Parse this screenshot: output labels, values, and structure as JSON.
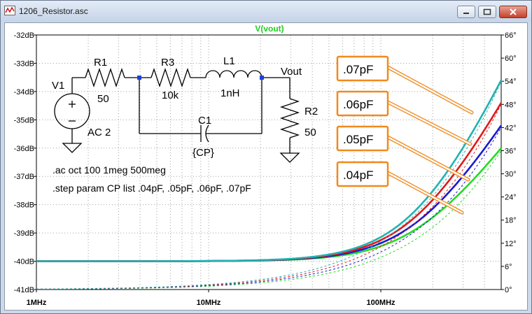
{
  "window": {
    "title": "1206_Resistor.asc"
  },
  "chart_data": {
    "type": "line",
    "title": "V(vout)",
    "x_scale": "log",
    "xlim": [
      1,
      500
    ],
    "x_ticks": [
      "1MHz",
      "10MHz",
      "100MHz"
    ],
    "ylim_db": [
      -41,
      -32
    ],
    "y_ticks_left": [
      "-32dB",
      "-33dB",
      "-34dB",
      "-35dB",
      "-36dB",
      "-37dB",
      "-38dB",
      "-39dB",
      "-40dB",
      "-41dB"
    ],
    "ylim_deg": [
      0,
      66
    ],
    "y_ticks_right": [
      "66°",
      "60°",
      "54°",
      "48°",
      "42°",
      "36°",
      "30°",
      "24°",
      "18°",
      "12°",
      "6°",
      "0°"
    ],
    "grid": true,
    "series": [
      {
        "name": ".04pF",
        "color": "#22dd22",
        "magnitude_db_at_500MHz": -36.0,
        "phase_deg_at_500MHz": 36
      },
      {
        "name": ".05pF",
        "color": "#1a1ad2",
        "magnitude_db_at_500MHz": -35.2,
        "phase_deg_at_500MHz": 42
      },
      {
        "name": ".06pF",
        "color": "#e01a1a",
        "magnitude_db_at_500MHz": -34.4,
        "phase_deg_at_500MHz": 48
      },
      {
        "name": ".07pF",
        "color": "#22b2b2",
        "magnitude_db_at_500MHz": -33.6,
        "phase_deg_at_500MHz": 54
      }
    ],
    "baseline_db": -40
  },
  "schematic": {
    "v1_name": "V1",
    "v1_value": "AC 2",
    "r1_name": "R1",
    "r1_value": "50",
    "r3_name": "R3",
    "r3_value": "10k",
    "l1_name": "L1",
    "l1_value": "1nH",
    "c1_name": "C1",
    "c1_value": "{CP}",
    "r2_name": "R2",
    "r2_value": "50",
    "vout_label": "Vout",
    "directive_ac": ".ac oct 100 1meg 500meg",
    "directive_step": ".step param CP list .04pF, .05pF, .06pF, .07pF"
  },
  "callouts": [
    ".07pF",
    ".06pF",
    ".05pF",
    ".04pF"
  ],
  "colors": {
    "callout_border": "#f08a1e",
    "grid": "#a0a0a0"
  }
}
